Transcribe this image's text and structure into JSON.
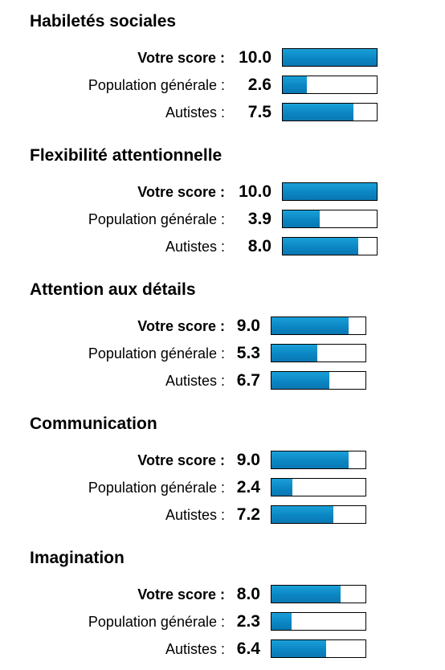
{
  "colors": {
    "bar_fill": "#0b86c4",
    "bar_border": "#000000",
    "bar_track": "#ffffff"
  },
  "chart_data": [
    {
      "type": "bar",
      "title": "Habiletés sociales",
      "xlim": [
        0,
        10
      ],
      "rows": [
        {
          "label": "Votre score :",
          "value_text": "10.0",
          "value": 10.0,
          "emphasis": true
        },
        {
          "label": "Population générale :",
          "value_text": "2.6",
          "value": 2.6,
          "emphasis": false
        },
        {
          "label": "Autistes :",
          "value_text": "7.5",
          "value": 7.5,
          "emphasis": false
        }
      ]
    },
    {
      "type": "bar",
      "title": "Flexibilité attentionnelle",
      "xlim": [
        0,
        10
      ],
      "rows": [
        {
          "label": "Votre score :",
          "value_text": "10.0",
          "value": 10.0,
          "emphasis": true
        },
        {
          "label": "Population générale :",
          "value_text": "3.9",
          "value": 3.9,
          "emphasis": false
        },
        {
          "label": "Autistes :",
          "value_text": "8.0",
          "value": 8.0,
          "emphasis": false
        }
      ]
    },
    {
      "type": "bar",
      "title": "Attention aux détails",
      "xlim": [
        0,
        10
      ],
      "rows": [
        {
          "label": "Votre score :",
          "value_text": "9.0",
          "value": 9.0,
          "emphasis": true
        },
        {
          "label": "Population générale :",
          "value_text": "5.3",
          "value": 5.3,
          "emphasis": false
        },
        {
          "label": "Autistes :",
          "value_text": "6.7",
          "value": 6.7,
          "emphasis": false
        }
      ]
    },
    {
      "type": "bar",
      "title": "Communication",
      "xlim": [
        0,
        10
      ],
      "rows": [
        {
          "label": "Votre score :",
          "value_text": "9.0",
          "value": 9.0,
          "emphasis": true
        },
        {
          "label": "Population générale :",
          "value_text": "2.4",
          "value": 2.4,
          "emphasis": false
        },
        {
          "label": "Autistes :",
          "value_text": "7.2",
          "value": 7.2,
          "emphasis": false
        }
      ]
    },
    {
      "type": "bar",
      "title": "Imagination",
      "xlim": [
        0,
        10
      ],
      "rows": [
        {
          "label": "Votre score :",
          "value_text": "8.0",
          "value": 8.0,
          "emphasis": true
        },
        {
          "label": "Population générale :",
          "value_text": "2.3",
          "value": 2.3,
          "emphasis": false
        },
        {
          "label": "Autistes :",
          "value_text": "6.4",
          "value": 6.4,
          "emphasis": false
        }
      ]
    }
  ]
}
